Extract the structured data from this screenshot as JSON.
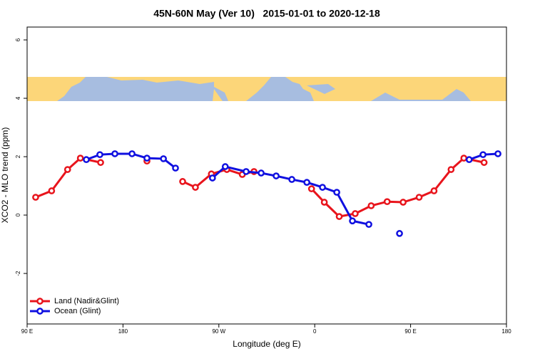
{
  "chart_data": {
    "type": "line",
    "title": "45N-60N May (Ver 10)   2015-01-01 to 2020-12-18",
    "xlabel": "Longitude (deg E)",
    "ylabel": "XCO2 - MLO trend (ppm)",
    "xlim": [
      90,
      540
    ],
    "ylim": [
      -3.73,
      6.44
    ],
    "xticks": [
      {
        "value": 90,
        "label": "90 E"
      },
      180,
      {
        "value": 270,
        "label": "90 W"
      },
      {
        "value": 360,
        "label": "0"
      },
      {
        "value": 450,
        "label": "90 E"
      },
      {
        "value": 540,
        "label": "180"
      }
    ],
    "yticks": [
      -2,
      0,
      2,
      4,
      6
    ],
    "legend": "bottom-left",
    "series": [
      {
        "name": "Land (Nadir&Glint)",
        "color": "#e8141c",
        "x": [
          98,
          113,
          128,
          140,
          159,
          180,
          202.5,
          220,
          236,
          248,
          263,
          277.5,
          292,
          303,
          330,
          357,
          369,
          383,
          398,
          413,
          428,
          443,
          458,
          472,
          488,
          500,
          519
        ],
        "values": [
          0.61,
          0.83,
          1.56,
          1.95,
          1.8,
          null,
          1.85,
          null,
          1.15,
          0.95,
          1.41,
          1.56,
          1.39,
          1.49,
          null,
          0.9,
          0.44,
          -0.05,
          0.05,
          0.32,
          0.46,
          0.44,
          0.61,
          0.83,
          1.56,
          1.95,
          1.8
        ]
      },
      {
        "name": "Ocean (Glint)",
        "color": "#1010e0",
        "x": [
          145.6,
          158.3,
          172.4,
          188.5,
          202.5,
          218,
          229.3,
          246,
          264,
          276,
          295.6,
          309.7,
          323.8,
          338.5,
          352.6,
          367.3,
          380.7,
          395.4,
          410.8,
          425,
          439.6,
          470,
          505,
          518,
          532
        ],
        "values": [
          1.9,
          2.07,
          2.1,
          2.1,
          1.95,
          1.93,
          1.61,
          null,
          1.27,
          1.66,
          1.49,
          1.44,
          1.34,
          1.22,
          1.12,
          0.95,
          0.78,
          -0.2,
          -0.32,
          null,
          -0.63,
          null,
          1.9,
          2.07,
          2.1
        ]
      }
    ]
  }
}
